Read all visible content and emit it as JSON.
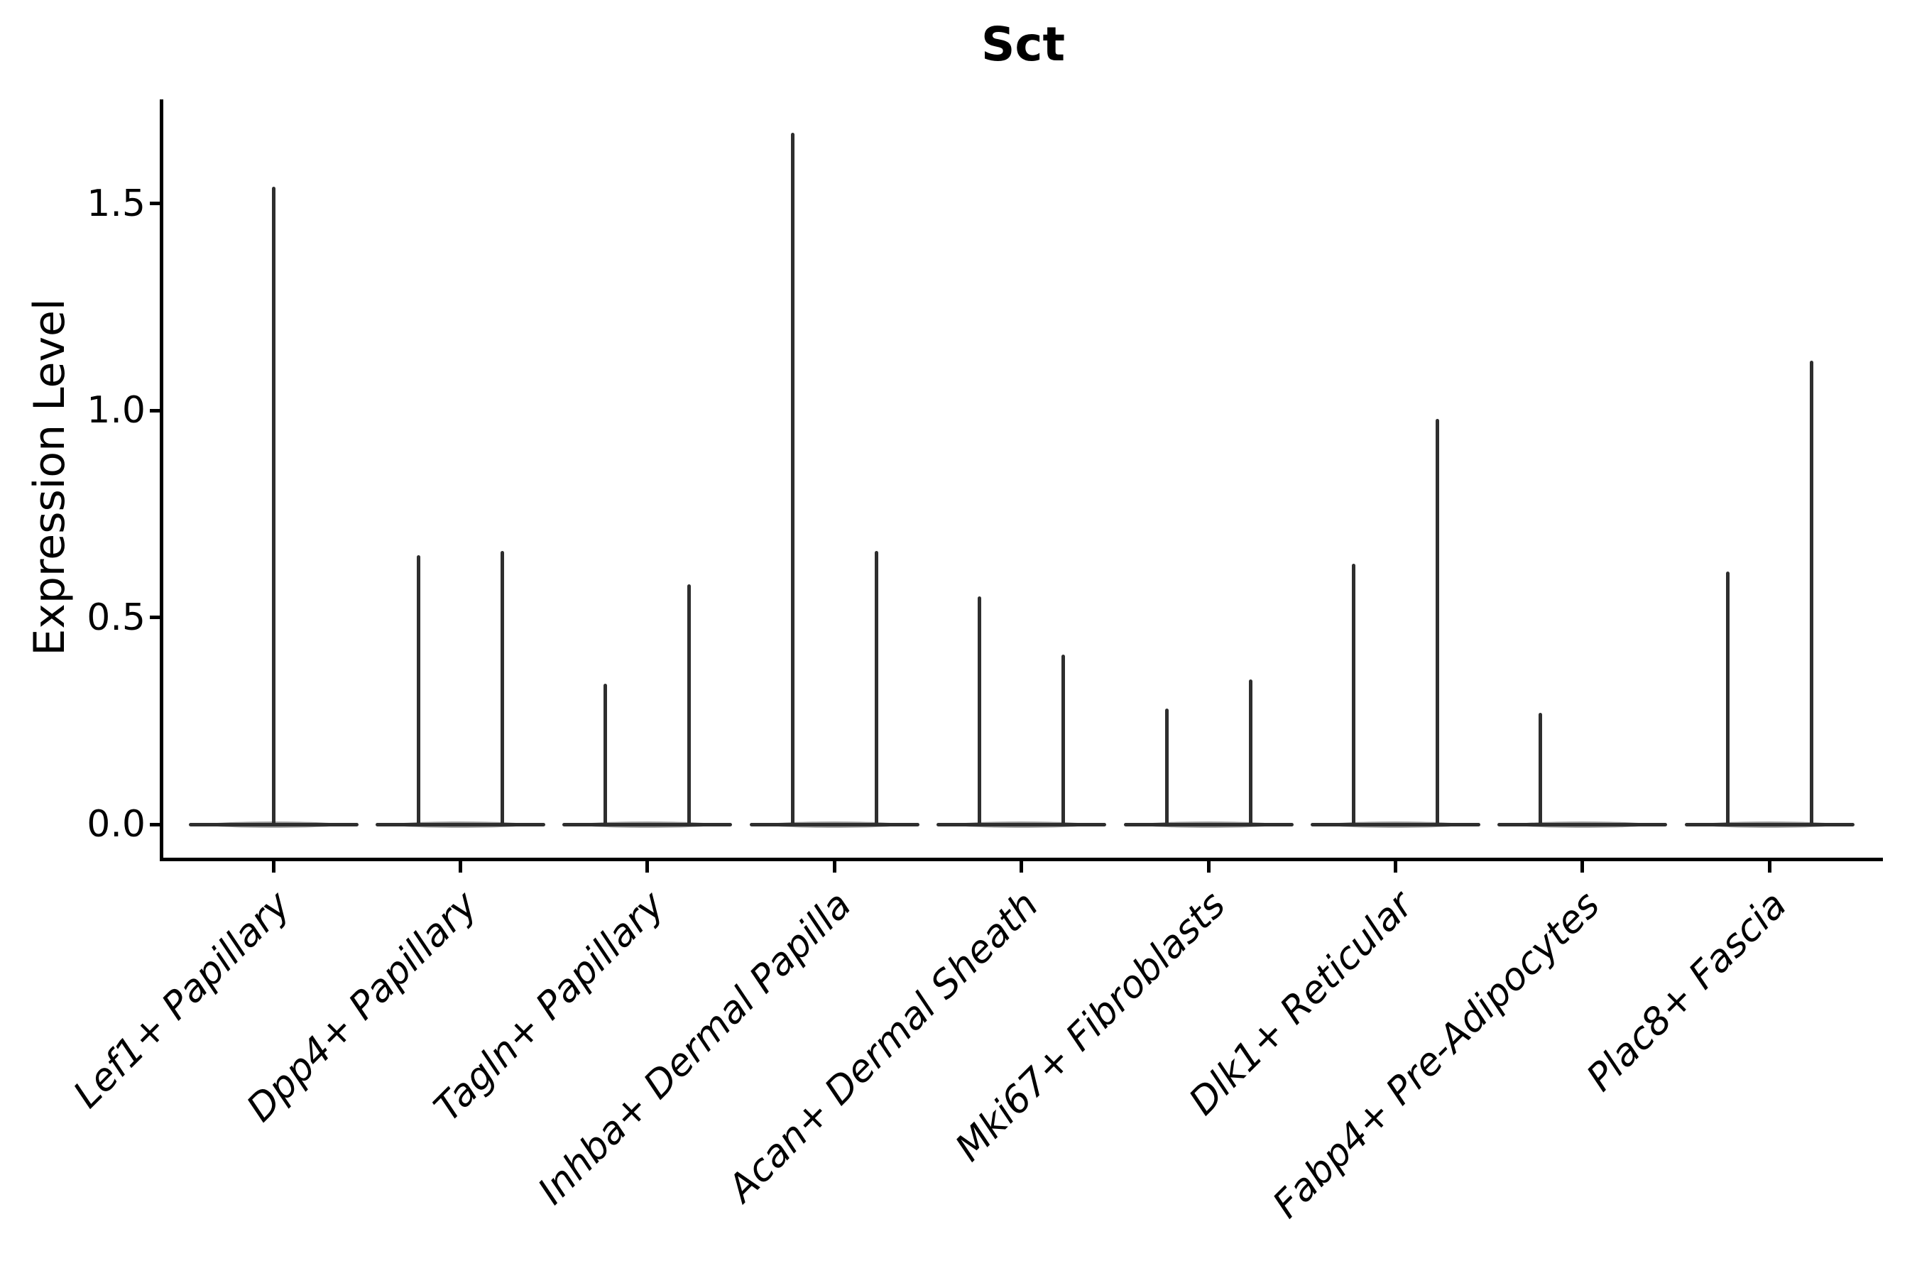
{
  "title": "Sct",
  "ylabel": "Expression Level",
  "colors": {
    "violin_line": "#2e2e2e",
    "spine": "#000000",
    "text": "#000000",
    "background": "#ffffff"
  },
  "chart_data": {
    "type": "violin",
    "title": "Sct",
    "xlabel": "",
    "ylabel": "Expression Level",
    "ylim": [
      -0.09,
      1.75
    ],
    "yticks": [
      0.0,
      0.5,
      1.0,
      1.5
    ],
    "ytick_labels": [
      "0.0",
      "0.5",
      "1.0",
      "1.5"
    ],
    "grid": false,
    "legend": "none",
    "xtick_label_rotation": 45,
    "xtick_label_style": "italic",
    "categories": [
      "Lef1+ Papillary",
      "Dpp4+ Papillary",
      "Tagln+ Papillary",
      "Inhba+ Dermal Papilla",
      "Acan+ Dermal Sheath",
      "Mki67+ Fibroblasts",
      "Dlk1+ Reticular",
      "Fabp4+ Pre-Adipocytes",
      "Plac8+ Fascia"
    ],
    "description": "Violin plot of Sct expression; nearly all density lies at 0 so each violin renders as a flat baseline at 0 with thin spikes reaching the maximum expression of each dodged sub-group.",
    "violins": [
      {
        "category": "Lef1+ Papillary",
        "spikes": [
          {
            "pos": "center",
            "max": 1.54
          }
        ]
      },
      {
        "category": "Dpp4+ Papillary",
        "spikes": [
          {
            "pos": "left",
            "max": 0.65
          },
          {
            "pos": "right",
            "max": 0.66
          }
        ]
      },
      {
        "category": "Tagln+ Papillary",
        "spikes": [
          {
            "pos": "left",
            "max": 0.34
          },
          {
            "pos": "right",
            "max": 0.58
          }
        ]
      },
      {
        "category": "Inhba+ Dermal Papilla",
        "spikes": [
          {
            "pos": "left",
            "max": 1.67
          },
          {
            "pos": "right",
            "max": 0.66
          }
        ]
      },
      {
        "category": "Acan+ Dermal Sheath",
        "spikes": [
          {
            "pos": "left",
            "max": 0.55
          },
          {
            "pos": "right",
            "max": 0.41
          }
        ]
      },
      {
        "category": "Mki67+ Fibroblasts",
        "spikes": [
          {
            "pos": "left",
            "max": 0.28
          },
          {
            "pos": "right",
            "max": 0.35
          }
        ]
      },
      {
        "category": "Dlk1+ Reticular",
        "spikes": [
          {
            "pos": "left",
            "max": 0.63
          },
          {
            "pos": "right",
            "max": 0.98
          }
        ]
      },
      {
        "category": "Fabp4+ Pre-Adipocytes",
        "spikes": [
          {
            "pos": "left",
            "max": 0.27
          }
        ]
      },
      {
        "category": "Plac8+ Fascia",
        "spikes": [
          {
            "pos": "left",
            "max": 0.61
          },
          {
            "pos": "right",
            "max": 1.12
          }
        ]
      }
    ]
  }
}
